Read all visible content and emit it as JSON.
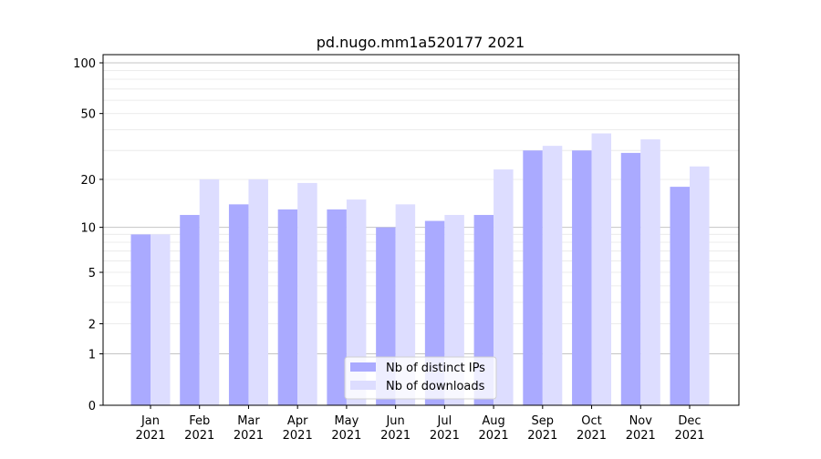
{
  "chart_data": {
    "type": "bar",
    "title": "pd.nugo.mm1a520177 2021",
    "xlabel": "",
    "ylabel": "",
    "yscale": "log10(1+y)",
    "ylim": [
      0,
      110
    ],
    "yticks": [
      0,
      1,
      2,
      5,
      10,
      20,
      50,
      100
    ],
    "categories": [
      "Jan\n2021",
      "Feb\n2021",
      "Mar\n2021",
      "Apr\n2021",
      "May\n2021",
      "Jun\n2021",
      "Jul\n2021",
      "Aug\n2021",
      "Sep\n2021",
      "Oct\n2021",
      "Nov\n2021",
      "Dec\n2021"
    ],
    "series": [
      {
        "name": "Nb of distinct IPs",
        "color": "#aaaaff",
        "values": [
          9,
          12,
          14,
          13,
          13,
          10,
          11,
          12,
          30,
          30,
          29,
          18
        ]
      },
      {
        "name": "Nb of downloads",
        "color": "#ddddff",
        "values": [
          9,
          20,
          20,
          19,
          15,
          14,
          12,
          23,
          32,
          38,
          35,
          24
        ]
      }
    ],
    "grid": true,
    "legend": "lower-center"
  }
}
